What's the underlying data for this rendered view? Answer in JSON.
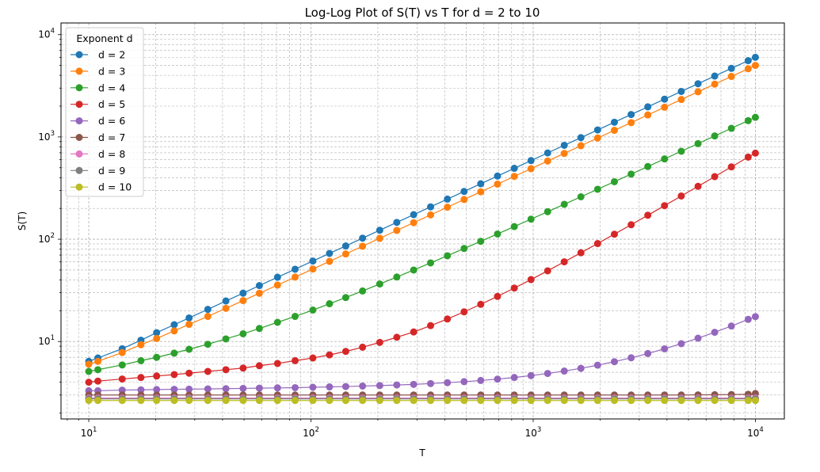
{
  "chart_data": {
    "type": "line",
    "title": "Log-Log Plot of S(T) vs T for d = 2 to 10",
    "xlabel": "T",
    "ylabel": "S(T)",
    "xscale": "log",
    "yscale": "log",
    "xlim": [
      7.5,
      13500
    ],
    "ylim": [
      1.75,
      13000
    ],
    "xticks": [
      {
        "value": 10,
        "base": "10",
        "exp": "1"
      },
      {
        "value": 100,
        "base": "10",
        "exp": "2"
      },
      {
        "value": 1000,
        "base": "10",
        "exp": "3"
      },
      {
        "value": 10000,
        "base": "10",
        "exp": "4"
      }
    ],
    "yticks": [
      {
        "value": 10,
        "base": "10",
        "exp": "1"
      },
      {
        "value": 100,
        "base": "10",
        "exp": "2"
      },
      {
        "value": 1000,
        "base": "10",
        "exp": "3"
      },
      {
        "value": 10000,
        "base": "10",
        "exp": "4"
      }
    ],
    "grid": true,
    "legend": {
      "title": "Exponent d",
      "placement": "upper-left"
    },
    "x": [
      10,
      10.99,
      14.14,
      17.17,
      20.2,
      24.24,
      28.28,
      34.34,
      41.41,
      49.49,
      58.58,
      70.7,
      84.84,
      101.98,
      121.17,
      143.38,
      170.65,
      203.98,
      243.37,
      289.84,
      345.4,
      411.06,
      488.8,
      580.8,
      690.9,
      822.2,
      977.7,
      1161.8,
      1380.0,
      1640.0,
      1950.0,
      2320.0,
      2760.0,
      3280.0,
      3900.0,
      4640.0,
      5520.0,
      6560.0,
      7800.0,
      9280.0,
      10000
    ],
    "series": [
      {
        "name": "d = 2",
        "color": "#1f77b4",
        "values": [
          6.4,
          6.9,
          8.5,
          10.3,
          12.2,
          14.6,
          17.0,
          20.6,
          24.9,
          29.7,
          35.2,
          42.5,
          50.9,
          61.2,
          72.7,
          86.0,
          102.4,
          122.4,
          146.0,
          173.9,
          207.2,
          246.6,
          293.3,
          348.5,
          414.5,
          493.3,
          586.6,
          697.1,
          828.0,
          984.0,
          1170.0,
          1392.0,
          1656.0,
          1968.0,
          2340.0,
          2784.0,
          3312.0,
          3936.0,
          4680.0,
          5568.0,
          6000.0
        ]
      },
      {
        "name": "d = 3",
        "color": "#ff7f0e",
        "values": [
          6.0,
          6.4,
          7.8,
          9.3,
          10.7,
          12.7,
          14.7,
          17.6,
          21.1,
          25.1,
          29.6,
          35.6,
          42.6,
          51.1,
          60.7,
          71.8,
          85.4,
          102.1,
          121.8,
          145.0,
          172.8,
          205.6,
          244.5,
          290.5,
          345.6,
          411.2,
          488.9,
          581.0,
          690.1,
          820.1,
          975.1,
          1160.1,
          1380.1,
          1640.1,
          1950.1,
          2320.1,
          2760.1,
          3280.1,
          3900.1,
          4640.1,
          5000.1
        ]
      },
      {
        "name": "d = 4",
        "color": "#2ca02c",
        "values": [
          5.1,
          5.3,
          5.9,
          6.5,
          7.0,
          7.7,
          8.4,
          9.4,
          10.6,
          11.9,
          13.4,
          15.4,
          17.6,
          20.3,
          23.4,
          26.9,
          31.2,
          36.5,
          42.7,
          50.0,
          58.7,
          68.9,
          81.1,
          95.4,
          112.5,
          132.9,
          157.0,
          185.6,
          219.5,
          259.8,
          307.8,
          364.9,
          432.8,
          513.5,
          609.7,
          724.0,
          859.8,
          1021.7,
          1213.9,
          1442.4,
          1553.8
        ]
      },
      {
        "name": "d = 5",
        "color": "#d62728",
        "values": [
          4.0,
          4.1,
          4.3,
          4.45,
          4.6,
          4.75,
          4.9,
          5.1,
          5.3,
          5.5,
          5.8,
          6.1,
          6.5,
          6.9,
          7.4,
          8.0,
          8.8,
          9.8,
          11.0,
          12.4,
          14.3,
          16.6,
          19.5,
          23.1,
          27.6,
          33.3,
          40.3,
          49.1,
          60.1,
          73.7,
          90.7,
          112.0,
          138.5,
          171.5,
          212.8,
          264.5,
          328.8,
          409.1,
          509.3,
          634.5,
          694.0
        ]
      },
      {
        "name": "d = 6",
        "color": "#9467bd",
        "values": [
          3.3,
          3.3,
          3.35,
          3.37,
          3.39,
          3.41,
          3.42,
          3.44,
          3.46,
          3.48,
          3.5,
          3.52,
          3.54,
          3.57,
          3.6,
          3.63,
          3.67,
          3.71,
          3.76,
          3.81,
          3.88,
          3.96,
          4.05,
          4.16,
          4.29,
          4.45,
          4.64,
          4.87,
          5.14,
          5.47,
          5.87,
          6.35,
          6.93,
          7.63,
          8.48,
          9.52,
          10.78,
          12.31,
          14.18,
          16.45,
          17.5
        ]
      },
      {
        "name": "d = 7",
        "color": "#8c564b",
        "values": [
          3.0,
          3.0,
          3.0,
          3.0,
          3.0,
          3.0,
          3.0,
          3.0,
          3.0,
          3.0,
          3.0,
          3.0,
          3.0,
          3.0,
          3.0,
          3.0,
          3.0,
          3.0,
          3.0,
          3.0,
          3.0,
          3.0,
          3.0,
          3.0,
          3.0,
          3.0,
          3.0,
          3.0,
          3.0,
          3.0,
          3.0,
          3.0,
          3.0,
          3.0,
          3.0,
          3.0,
          3.01,
          3.02,
          3.03,
          3.05,
          3.1
        ]
      },
      {
        "name": "d = 8",
        "color": "#e377c2",
        "values": [
          2.8,
          2.8,
          2.8,
          2.8,
          2.8,
          2.8,
          2.8,
          2.8,
          2.8,
          2.8,
          2.8,
          2.8,
          2.8,
          2.8,
          2.8,
          2.8,
          2.8,
          2.8,
          2.8,
          2.8,
          2.8,
          2.8,
          2.8,
          2.8,
          2.8,
          2.8,
          2.8,
          2.8,
          2.8,
          2.8,
          2.8,
          2.8,
          2.8,
          2.8,
          2.8,
          2.8,
          2.8,
          2.8,
          2.8,
          2.8,
          2.8
        ]
      },
      {
        "name": "d = 9",
        "color": "#7f7f7f",
        "values": [
          2.75,
          2.75,
          2.75,
          2.75,
          2.75,
          2.75,
          2.75,
          2.75,
          2.75,
          2.75,
          2.75,
          2.75,
          2.75,
          2.75,
          2.75,
          2.75,
          2.75,
          2.75,
          2.75,
          2.75,
          2.75,
          2.75,
          2.75,
          2.75,
          2.75,
          2.75,
          2.75,
          2.75,
          2.75,
          2.75,
          2.75,
          2.75,
          2.75,
          2.75,
          2.75,
          2.75,
          2.75,
          2.75,
          2.75,
          2.75,
          2.75
        ]
      },
      {
        "name": "d = 10",
        "color": "#bcbd22",
        "values": [
          2.65,
          2.65,
          2.65,
          2.65,
          2.65,
          2.65,
          2.65,
          2.65,
          2.65,
          2.65,
          2.65,
          2.65,
          2.65,
          2.65,
          2.65,
          2.65,
          2.65,
          2.65,
          2.65,
          2.65,
          2.65,
          2.65,
          2.65,
          2.65,
          2.65,
          2.65,
          2.65,
          2.65,
          2.65,
          2.65,
          2.65,
          2.65,
          2.65,
          2.65,
          2.65,
          2.65,
          2.65,
          2.65,
          2.65,
          2.65,
          2.65
        ]
      }
    ]
  }
}
